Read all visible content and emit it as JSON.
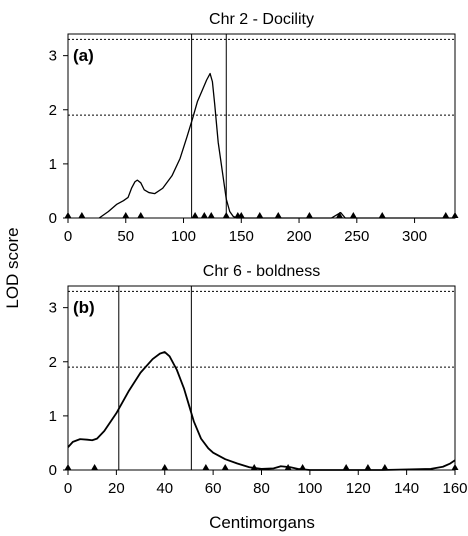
{
  "chart_data": [
    {
      "type": "line",
      "title": "Chr 2 - Docility",
      "panel_label": "(a)",
      "xlim": [
        0,
        335
      ],
      "ylim": [
        0,
        3.4
      ],
      "xticks": [
        0,
        50,
        100,
        150,
        200,
        250,
        300
      ],
      "yticks": [
        0,
        1,
        2,
        3
      ],
      "thresholds": [
        1.9,
        3.3
      ],
      "interval_bounds": [
        107,
        137
      ],
      "markers": [
        0,
        12,
        50,
        63,
        110,
        118,
        124,
        137,
        147,
        150,
        166,
        182,
        209,
        235,
        247,
        272,
        327,
        335
      ],
      "series": [
        {
          "x": [
            27,
            35,
            42,
            48,
            52,
            55,
            58,
            60,
            63,
            66,
            70,
            75,
            82,
            90,
            97,
            103,
            108,
            112,
            116,
            120,
            123,
            125,
            127,
            130,
            134,
            137,
            140,
            143,
            146,
            150,
            160,
            200,
            228,
            232,
            236,
            240,
            335
          ],
          "y": [
            0,
            0.12,
            0.25,
            0.32,
            0.38,
            0.55,
            0.67,
            0.7,
            0.65,
            0.52,
            0.47,
            0.45,
            0.55,
            0.78,
            1.1,
            1.5,
            1.85,
            2.15,
            2.35,
            2.55,
            2.67,
            2.52,
            2.1,
            1.4,
            0.8,
            0.35,
            0.12,
            0.03,
            0,
            0,
            0,
            0,
            0,
            0.05,
            0.1,
            0,
            0
          ]
        }
      ]
    },
    {
      "type": "line",
      "title": "Chr 6 - boldness",
      "panel_label": "(b)",
      "xlim": [
        0,
        160
      ],
      "ylim": [
        0,
        3.4
      ],
      "xticks": [
        0,
        20,
        40,
        60,
        80,
        100,
        120,
        140,
        160
      ],
      "yticks": [
        0,
        1,
        2,
        3
      ],
      "thresholds": [
        1.9,
        3.3
      ],
      "interval_bounds": [
        21,
        51
      ],
      "markers": [
        0,
        11,
        40,
        57,
        65,
        77,
        91,
        97,
        115,
        124,
        131,
        160
      ],
      "series": [
        {
          "x": [
            0,
            2,
            5,
            8,
            10,
            12,
            15,
            20,
            25,
            30,
            35,
            38,
            40,
            42,
            45,
            48,
            50,
            52,
            55,
            58,
            60,
            65,
            70,
            75,
            80,
            85,
            88,
            92,
            95,
            100,
            130,
            150,
            155,
            158,
            160
          ],
          "y": [
            0.42,
            0.52,
            0.57,
            0.56,
            0.55,
            0.58,
            0.72,
            1.05,
            1.45,
            1.8,
            2.05,
            2.15,
            2.18,
            2.1,
            1.85,
            1.5,
            1.2,
            0.9,
            0.58,
            0.4,
            0.32,
            0.2,
            0.12,
            0.05,
            0.02,
            0.03,
            0.07,
            0.05,
            0.02,
            0,
            0,
            0.02,
            0.06,
            0.12,
            0.18
          ]
        }
      ]
    }
  ],
  "labels": {
    "y_axis": "LOD score",
    "x_axis": "Centimorgans"
  },
  "colors": {
    "curve": "#000000",
    "axis": "#000000",
    "threshold": "#000000",
    "marker": "#000000"
  }
}
